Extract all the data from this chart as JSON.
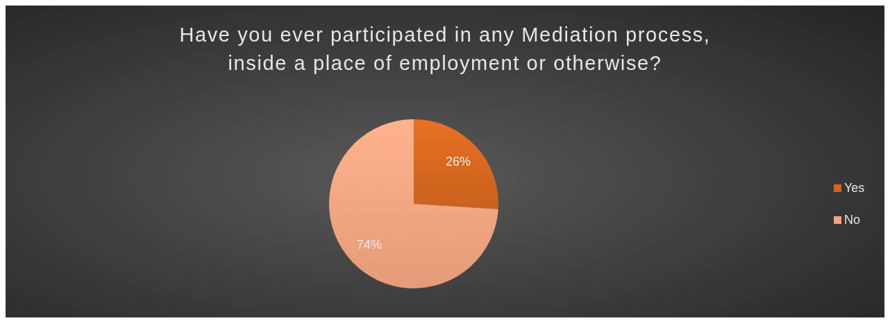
{
  "chart_data": {
    "type": "pie",
    "title": "Have you ever participated in any Mediation process,\ninside a place of employment or otherwise?",
    "categories": [
      "Yes",
      "No"
    ],
    "values": [
      26,
      74
    ],
    "colors": [
      "#d4661f",
      "#f2a380"
    ],
    "value_labels": [
      "26%",
      "74%"
    ],
    "legend": "right"
  }
}
